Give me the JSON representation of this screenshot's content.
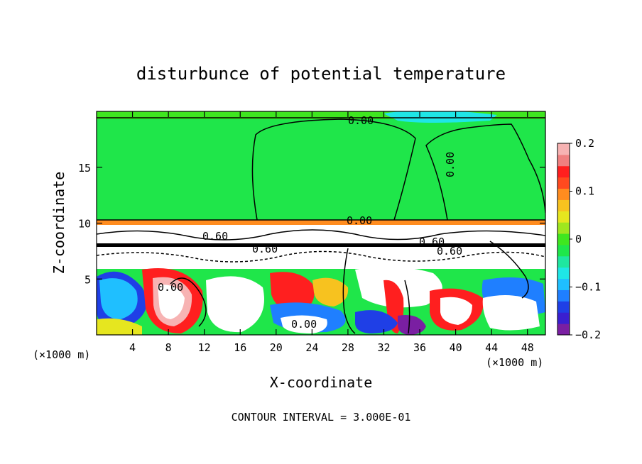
{
  "chart_data": {
    "type": "heatmap",
    "title": "disturbunce of potential temperature",
    "xlabel": "X-coordinate",
    "ylabel": "Z-coordinate",
    "x_unit": "(×1000 m)",
    "y_unit": "(×1000 m)",
    "xlim": [
      0,
      50
    ],
    "ylim": [
      0,
      20
    ],
    "x_ticks": [
      4,
      8,
      12,
      16,
      20,
      24,
      28,
      32,
      36,
      40,
      44,
      48
    ],
    "y_ticks": [
      5,
      10,
      15
    ],
    "colorbar": {
      "range": [
        -0.2,
        0.2
      ],
      "tick_values": [
        0.2,
        0.1,
        0,
        -0.1,
        -0.2
      ],
      "tick_labels": [
        "0.2",
        "0.1",
        "0",
        "−0.1",
        "−0.2"
      ],
      "colors": [
        "#7a1fa2",
        "#3a1fd0",
        "#1f3fe6",
        "#1f7fff",
        "#1fbfff",
        "#1fe6e6",
        "#1fe6a0",
        "#1fe64a",
        "#3fe61f",
        "#9fe61f",
        "#e6e61f",
        "#f7c21f",
        "#ff8c1f",
        "#ff4a1f",
        "#ff1f1f",
        "#f08080",
        "#f7b3b3"
      ]
    },
    "contour_labels": [
      "0.00",
      "0.00",
      "0.00",
      "0.00",
      "0.60",
      "0.60",
      "0.60",
      "0.60",
      "0.00",
      "0.00"
    ],
    "contour_interval": "CONTOUR INTERVAL = 3.000E-01",
    "grid": false
  }
}
